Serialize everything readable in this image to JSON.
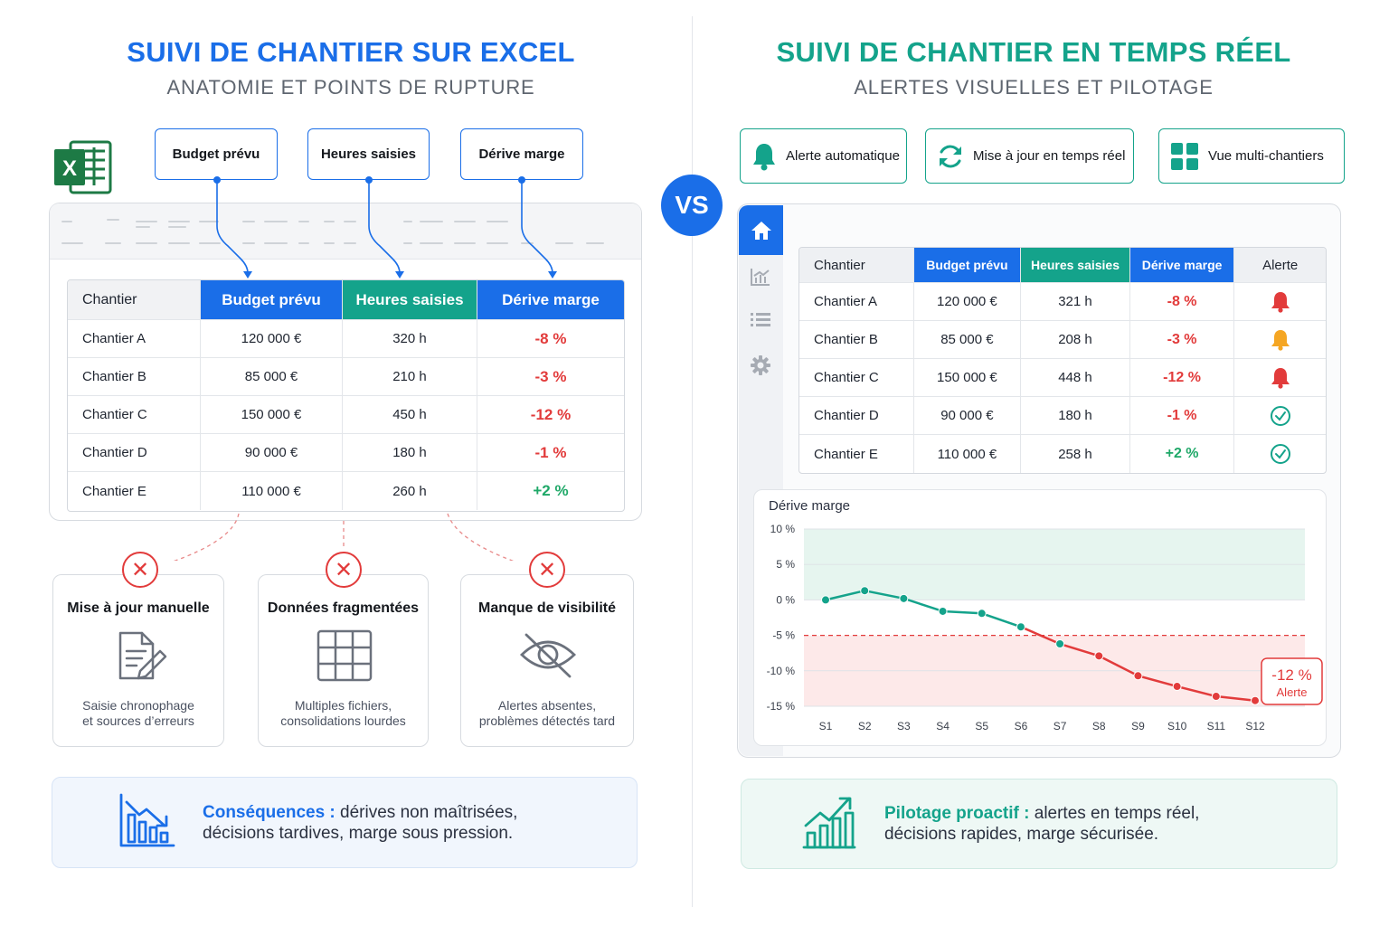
{
  "left": {
    "title": "SUIVI DE CHANTIER SUR EXCEL",
    "subtitle": "ANATOMIE ET POINTS DE RUPTURE",
    "callouts": [
      "Budget prévu",
      "Heures saisies",
      "Dérive marge"
    ],
    "table": {
      "headers": [
        "Chantier",
        "Budget prévu",
        "Heures saisies",
        "Dérive marge"
      ],
      "rows": [
        [
          "Chantier A",
          "120 000 €",
          "320 h",
          "-8 %"
        ],
        [
          "Chantier B",
          "85 000 €",
          "210 h",
          "-3 %"
        ],
        [
          "Chantier C",
          "150 000 €",
          "450 h",
          "-12 %"
        ],
        [
          "Chantier D",
          "90 000 €",
          "180 h",
          "-1 %"
        ],
        [
          "Chantier E",
          "110 000 €",
          "260 h",
          "+2 %"
        ]
      ]
    },
    "problems": [
      {
        "title": "Mise à jour manuelle",
        "desc1": "Saisie chronophage",
        "desc2": "et sources d’erreurs",
        "icon": "document-edit-icon"
      },
      {
        "title": "Données fragmentées",
        "desc1": "Multiples fichiers,",
        "desc2": "consolidations lourdes",
        "icon": "grid-icon"
      },
      {
        "title": "Manque de visibilité",
        "desc1": "Alertes absentes,",
        "desc2": "problèmes détectés tard",
        "icon": "eye-off-icon"
      }
    ],
    "conclusion": {
      "label": "Conséquences :",
      "text1": " dérives non maîtrisées,",
      "text2": "décisions tardives, marge sous pression."
    }
  },
  "vs": "VS",
  "right": {
    "title": "SUIVI DE CHANTIER EN TEMPS RÉEL",
    "subtitle": "ALERTES VISUELLES ET PILOTAGE",
    "features": [
      "Alerte automatique",
      "Mise à jour en temps réel",
      "Vue multi-chantiers"
    ],
    "table": {
      "headers": [
        "Chantier",
        "Budget prévu",
        "Heures saisies",
        "Dérive marge",
        "Alerte"
      ],
      "rows": [
        [
          "Chantier A",
          "120 000 €",
          "321 h",
          "-8 %"
        ],
        [
          "Chantier B",
          "85 000 €",
          "208 h",
          "-3 %"
        ],
        [
          "Chantier C",
          "150 000 €",
          "448 h",
          "-12 %"
        ],
        [
          "Chantier D",
          "90 000 €",
          "180 h",
          "-1 %"
        ],
        [
          "Chantier E",
          "110 000 €",
          "258 h",
          "+2 %"
        ]
      ],
      "alerts": [
        "bell-red",
        "bell-orange",
        "bell-red",
        "check-green",
        "check-green"
      ]
    },
    "conclusion": {
      "label": "Pilotage proactif :",
      "text1": " alertes en temps réel,",
      "text2": "décisions rapides, marge sécurisée."
    }
  },
  "colors": {
    "blue": "#1a6ee8",
    "teal": "#14a38b",
    "red": "#e23b3b",
    "green": "#1fa868",
    "orange": "#f5a623"
  },
  "chart_data": {
    "type": "line",
    "title": "Dérive marge",
    "x": [
      "S1",
      "S2",
      "S3",
      "S4",
      "S5",
      "S6",
      "S7",
      "S8",
      "S9",
      "S10",
      "S11",
      "S12"
    ],
    "series": [
      {
        "values": [
          0,
          1.3,
          0.2,
          -1.6,
          -1.9,
          -3.8,
          -6.2,
          -7.9,
          -10.7,
          -12.2,
          -13.6,
          -14.2
        ]
      }
    ],
    "yticks": [
      "10 %",
      "5 %",
      "0 %",
      "-5 %",
      "-10 %",
      "-15 %"
    ],
    "ylim": [
      -15,
      10
    ],
    "threshold": -5,
    "annotation": {
      "value": "-12 %",
      "label": "Alerte"
    }
  }
}
